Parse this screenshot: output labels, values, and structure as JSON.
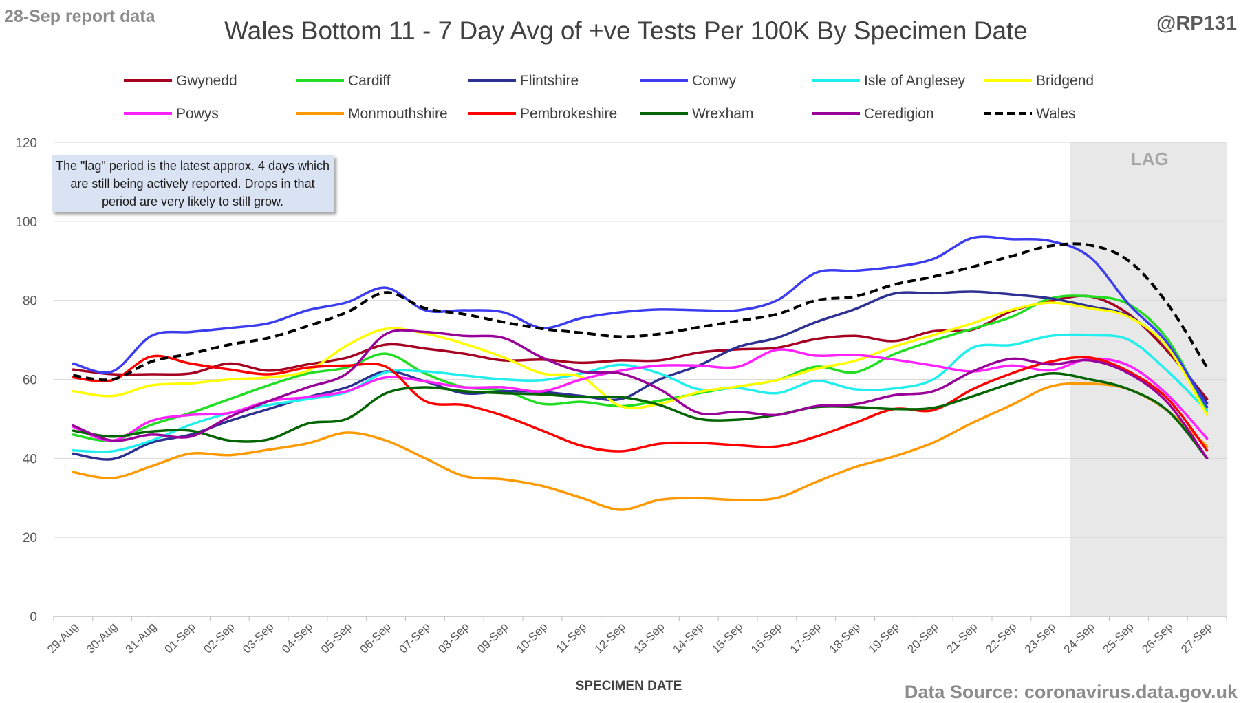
{
  "header": {
    "report_date_label": "28-Sep report data",
    "handle": "@RP131",
    "source": "Data Source: coronavirus.data.gov.uk"
  },
  "note": {
    "text": "The \"lag\" period is the latest approx. 4 days which are still being actively reported.  Drops in that period are very likely to still grow."
  },
  "colors": {
    "grid": "#d9d9d9",
    "lag_shade": "#e8e8e8",
    "note_bg": "#dae3f3"
  },
  "chart_data": {
    "type": "line",
    "title": "Wales Bottom 11 - 7 Day Avg of +ve Tests Per 100K By Specimen Date",
    "xlabel": "SPECIMEN DATE",
    "ylabel": "",
    "ylim": [
      0,
      120
    ],
    "yticks": [
      0,
      20,
      40,
      60,
      80,
      100,
      120
    ],
    "grid": true,
    "legend_position": "top",
    "lag_label": "LAG",
    "lag_start": "24-Sep",
    "categories": [
      "29-Aug",
      "30-Aug",
      "31-Aug",
      "01-Sep",
      "02-Sep",
      "03-Sep",
      "04-Sep",
      "05-Sep",
      "06-Sep",
      "07-Sep",
      "08-Sep",
      "09-Sep",
      "10-Sep",
      "11-Sep",
      "12-Sep",
      "13-Sep",
      "14-Sep",
      "15-Sep",
      "16-Sep",
      "17-Sep",
      "18-Sep",
      "19-Sep",
      "20-Sep",
      "21-Sep",
      "22-Sep",
      "23-Sep",
      "24-Sep",
      "25-Sep",
      "26-Sep",
      "27-Sep"
    ],
    "series": [
      {
        "name": "Gwynedd",
        "color": "#a50021",
        "dashed": false,
        "values": [
          62.5,
          61.3,
          61.3,
          61.5,
          64,
          62.2,
          63.8,
          65.5,
          68.8,
          67.8,
          66.5,
          64.8,
          65,
          64.2,
          64.8,
          64.8,
          66.8,
          67.6,
          68,
          70.2,
          71,
          69.7,
          72.2,
          72.6,
          77.3,
          79.8,
          81,
          76.5,
          67,
          55
        ]
      },
      {
        "name": "Cardiff",
        "color": "#22dd22",
        "dashed": false,
        "values": [
          46,
          44.5,
          48.5,
          51.5,
          55,
          58.5,
          61.5,
          63,
          66.5,
          61.5,
          58,
          57.2,
          53.8,
          54.3,
          53.2,
          54.6,
          56.5,
          58.2,
          59.8,
          63.2,
          61.8,
          66.4,
          69.8,
          72.8,
          75.8,
          80.5,
          81,
          79,
          70,
          52
        ]
      },
      {
        "name": "Flintshire",
        "color": "#2e3192",
        "dashed": false,
        "values": [
          41.2,
          39.8,
          44,
          46,
          49.5,
          52.5,
          55.5,
          58,
          62,
          59.5,
          56.5,
          57,
          56.8,
          55.8,
          55,
          60,
          63.5,
          68.2,
          70.5,
          74.5,
          77.8,
          81.7,
          81.8,
          82.2,
          81.5,
          80.5,
          78.5,
          76,
          68,
          54
        ]
      },
      {
        "name": "Conwy",
        "color": "#3c3cf0",
        "dashed": false,
        "values": [
          64,
          62,
          71,
          72,
          73,
          74.2,
          77.5,
          79.5,
          83.2,
          77.5,
          77.5,
          77,
          73,
          75.5,
          77,
          77.7,
          77.5,
          77.5,
          80,
          87,
          87.5,
          88.5,
          90.5,
          95.8,
          95.5,
          95,
          91,
          79,
          69,
          53
        ]
      },
      {
        "name": "Isle of Anglesey",
        "color": "#22eeee",
        "dashed": false,
        "values": [
          42,
          41.8,
          44.5,
          48.5,
          51.5,
          53.5,
          55,
          56.8,
          61.8,
          62,
          61,
          60,
          59.8,
          61.5,
          63.7,
          61.5,
          57.5,
          57.8,
          56.5,
          59.6,
          57.5,
          57.7,
          60,
          68,
          68.7,
          71,
          71.2,
          70,
          62,
          52
        ]
      },
      {
        "name": "Bridgend",
        "color": "#ffff00",
        "dashed": false,
        "values": [
          57,
          55.8,
          58.5,
          59,
          60,
          60.5,
          62.2,
          68.6,
          72.8,
          71.6,
          69,
          65.6,
          61.5,
          60.6,
          53.2,
          53.8,
          56.8,
          58.2,
          59.8,
          62.7,
          64.7,
          68.3,
          71.2,
          74.2,
          77.6,
          79.4,
          78,
          75.8,
          68,
          51
        ]
      },
      {
        "name": "Powys",
        "color": "#ff22ff",
        "dashed": false,
        "values": [
          48,
          44.5,
          49.5,
          51,
          51.5,
          54.5,
          55.5,
          57,
          60.5,
          59.5,
          58,
          58,
          57,
          60,
          62.2,
          63.5,
          63.5,
          63.2,
          67.5,
          66,
          66.2,
          65,
          63.5,
          62,
          63.5,
          62.3,
          65.2,
          63.5,
          56,
          45
        ]
      },
      {
        "name": "Monmouthshire",
        "color": "#ff9900",
        "dashed": false,
        "values": [
          36.5,
          35,
          38,
          41.2,
          40.8,
          42.2,
          43.8,
          46.5,
          44.5,
          40,
          35.5,
          34.7,
          33,
          30,
          27,
          29.5,
          29.9,
          29.5,
          30,
          34,
          37.8,
          40.5,
          44,
          49,
          53.5,
          58.2,
          58.9,
          57.5,
          52,
          43
        ]
      },
      {
        "name": "Pembrokeshire",
        "color": "#ff0000",
        "dashed": false,
        "values": [
          60.5,
          59.8,
          65.8,
          64,
          62.5,
          61.3,
          63,
          63.5,
          63.2,
          54.5,
          53.5,
          50.8,
          47,
          43.2,
          41.8,
          43.7,
          43.9,
          43.3,
          43,
          45.5,
          49,
          52.5,
          52.2,
          57.5,
          61.5,
          64.5,
          65.5,
          62,
          55,
          42
        ]
      },
      {
        "name": "Wrexham",
        "color": "#006400",
        "dashed": false,
        "values": [
          47,
          45.5,
          46.8,
          47,
          44.5,
          44.8,
          48.8,
          50,
          56.5,
          58,
          57,
          56.5,
          56.2,
          55.5,
          55.5,
          53.5,
          50,
          49.8,
          51,
          53,
          53,
          52.5,
          52.8,
          55.7,
          59,
          61.5,
          60,
          57.5,
          52,
          40
        ]
      },
      {
        "name": "Ceredigion",
        "color": "#990099",
        "dashed": false,
        "values": [
          48.3,
          44.5,
          46,
          45.5,
          50.5,
          54.5,
          58,
          61.5,
          71.5,
          72,
          71,
          70.5,
          65.5,
          62,
          61.5,
          57.5,
          51.5,
          51.8,
          51,
          53.2,
          53.7,
          56,
          57,
          62,
          65.2,
          63.8,
          64.8,
          61.5,
          54,
          40
        ]
      },
      {
        "name": "Wales",
        "color": "#000000",
        "dashed": true,
        "values": [
          61,
          60,
          64.5,
          66.5,
          68.8,
          70.5,
          73.5,
          77,
          82,
          78,
          76.5,
          74.5,
          72.8,
          71.8,
          70.8,
          71.5,
          73.2,
          74.8,
          76.5,
          80,
          81,
          84,
          86,
          88.5,
          91.2,
          93.8,
          94,
          90,
          79,
          63
        ]
      }
    ]
  }
}
